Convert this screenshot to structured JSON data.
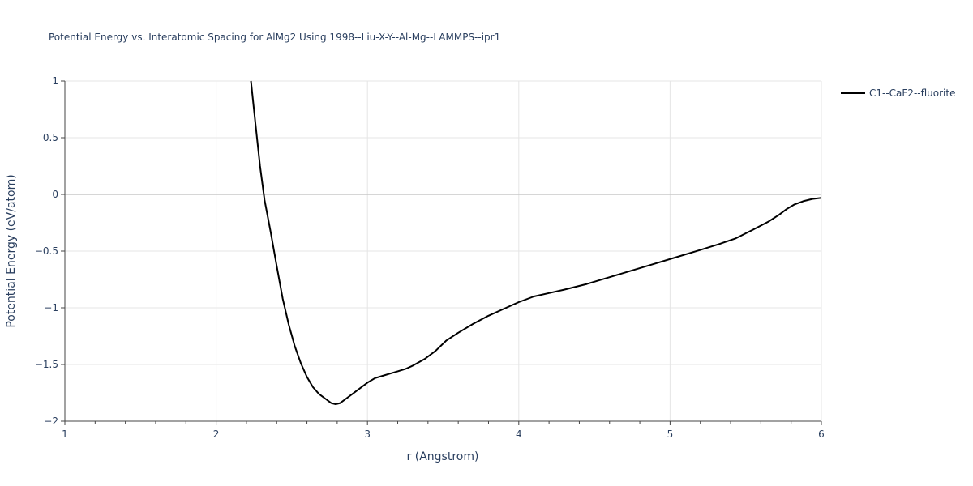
{
  "chart_data": {
    "type": "line",
    "title": "Potential Energy vs. Interatomic Spacing for AlMg2 Using 1998--Liu-X-Y--Al-Mg--LAMMPS--ipr1",
    "xlabel": "r (Angstrom)",
    "ylabel": "Potential Energy (eV/atom)",
    "xlim": [
      1,
      6
    ],
    "ylim": [
      -2,
      1
    ],
    "xticks": [
      1,
      2,
      3,
      4,
      5,
      6
    ],
    "xtick_labels": [
      "1",
      "2",
      "3",
      "4",
      "5",
      "6"
    ],
    "yticks": [
      -2,
      -1.5,
      -1,
      -0.5,
      0,
      0.5,
      1
    ],
    "ytick_labels": [
      "−2",
      "−1.5",
      "−1",
      "−0.5",
      "0",
      "0.5",
      "1"
    ],
    "x_minor_step": 0.2,
    "grid": true,
    "legend_position": "top-right",
    "series": [
      {
        "name": "C1--CaF2--fluorite",
        "color": "#000000",
        "x": [
          2.23,
          2.26,
          2.29,
          2.32,
          2.36,
          2.4,
          2.44,
          2.48,
          2.52,
          2.56,
          2.6,
          2.64,
          2.68,
          2.72,
          2.76,
          2.79,
          2.82,
          2.86,
          2.9,
          2.95,
          3.0,
          3.05,
          3.1,
          3.15,
          3.2,
          3.25,
          3.3,
          3.38,
          3.45,
          3.52,
          3.6,
          3.7,
          3.8,
          3.9,
          4.0,
          4.1,
          4.2,
          4.3,
          4.45,
          4.6,
          4.75,
          4.9,
          5.05,
          5.2,
          5.32,
          5.43,
          5.55,
          5.65,
          5.72,
          5.77,
          5.82,
          5.88,
          5.94,
          6.0
        ],
        "y": [
          1.0,
          0.62,
          0.25,
          -0.05,
          -0.33,
          -0.63,
          -0.92,
          -1.15,
          -1.34,
          -1.49,
          -1.61,
          -1.7,
          -1.76,
          -1.8,
          -1.84,
          -1.85,
          -1.84,
          -1.8,
          -1.76,
          -1.71,
          -1.66,
          -1.62,
          -1.6,
          -1.58,
          -1.56,
          -1.54,
          -1.51,
          -1.45,
          -1.38,
          -1.29,
          -1.22,
          -1.14,
          -1.07,
          -1.01,
          -0.95,
          -0.9,
          -0.87,
          -0.84,
          -0.79,
          -0.73,
          -0.67,
          -0.61,
          -0.55,
          -0.49,
          -0.44,
          -0.39,
          -0.31,
          -0.24,
          -0.18,
          -0.13,
          -0.09,
          -0.06,
          -0.04,
          -0.03
        ]
      }
    ]
  }
}
